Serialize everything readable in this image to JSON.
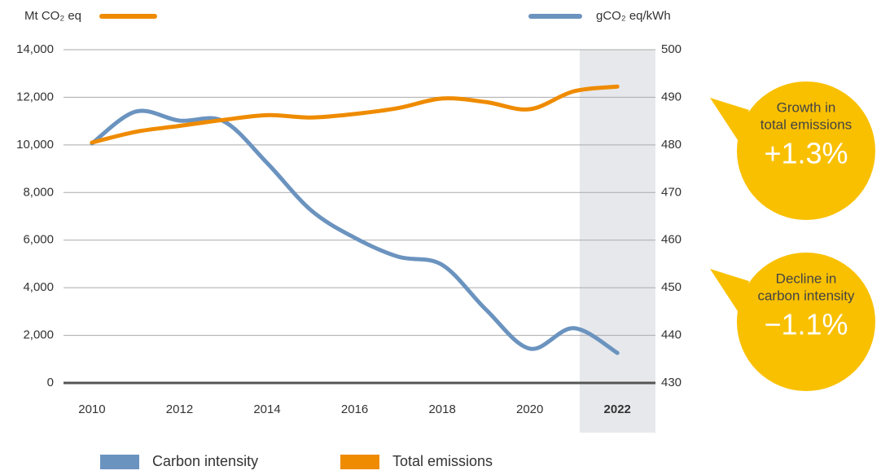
{
  "chart_data": {
    "type": "line",
    "x": [
      2010,
      2011,
      2012,
      2013,
      2014,
      2015,
      2016,
      2017,
      2018,
      2019,
      2020,
      2021,
      2022
    ],
    "xlim": [
      2009.35,
      2022.87
    ],
    "xticks": [
      2010,
      2012,
      2014,
      2016,
      2018,
      2020,
      2022
    ],
    "y_label": "Mt CO₂ eq",
    "y2_label": "gCO₂ eq/kWh",
    "ylim": [
      0,
      14000
    ],
    "yticks": [
      {
        "value": 0,
        "label": "0"
      },
      {
        "value": 2000,
        "label": "2,000"
      },
      {
        "value": 4000,
        "label": "4,000"
      },
      {
        "value": 6000,
        "label": "6,000"
      },
      {
        "value": 8000,
        "label": "8,000"
      },
      {
        "value": 10000,
        "label": "10,000"
      },
      {
        "value": 12000,
        "label": "12,000"
      },
      {
        "value": 14000,
        "label": "14,000"
      }
    ],
    "y2lim": [
      430,
      500
    ],
    "y2ticks": [
      430,
      440,
      450,
      460,
      470,
      480,
      490,
      500
    ],
    "grid": true,
    "series": [
      {
        "name": "Carbon intensity",
        "color": "#6b93bf",
        "axis": "y2",
        "values": [
          480.3,
          487,
          485.1,
          485,
          476.2,
          466.3,
          460.5,
          456.5,
          454.8,
          445.4,
          437.2,
          441.5,
          436.3
        ]
      },
      {
        "name": "Total emissions",
        "color": "#ef8b00",
        "values": [
          10100,
          10550,
          10800,
          11050,
          11250,
          11150,
          11300,
          11550,
          11950,
          11800,
          11500,
          12250,
          12450
        ]
      }
    ],
    "annotations": [
      {
        "lines": [
          "Growth in",
          "total emissions"
        ],
        "label": "+1.3%"
      },
      {
        "lines": [
          "Decline in",
          "carbon intensity"
        ],
        "label": "−1.1%"
      }
    ]
  }
}
